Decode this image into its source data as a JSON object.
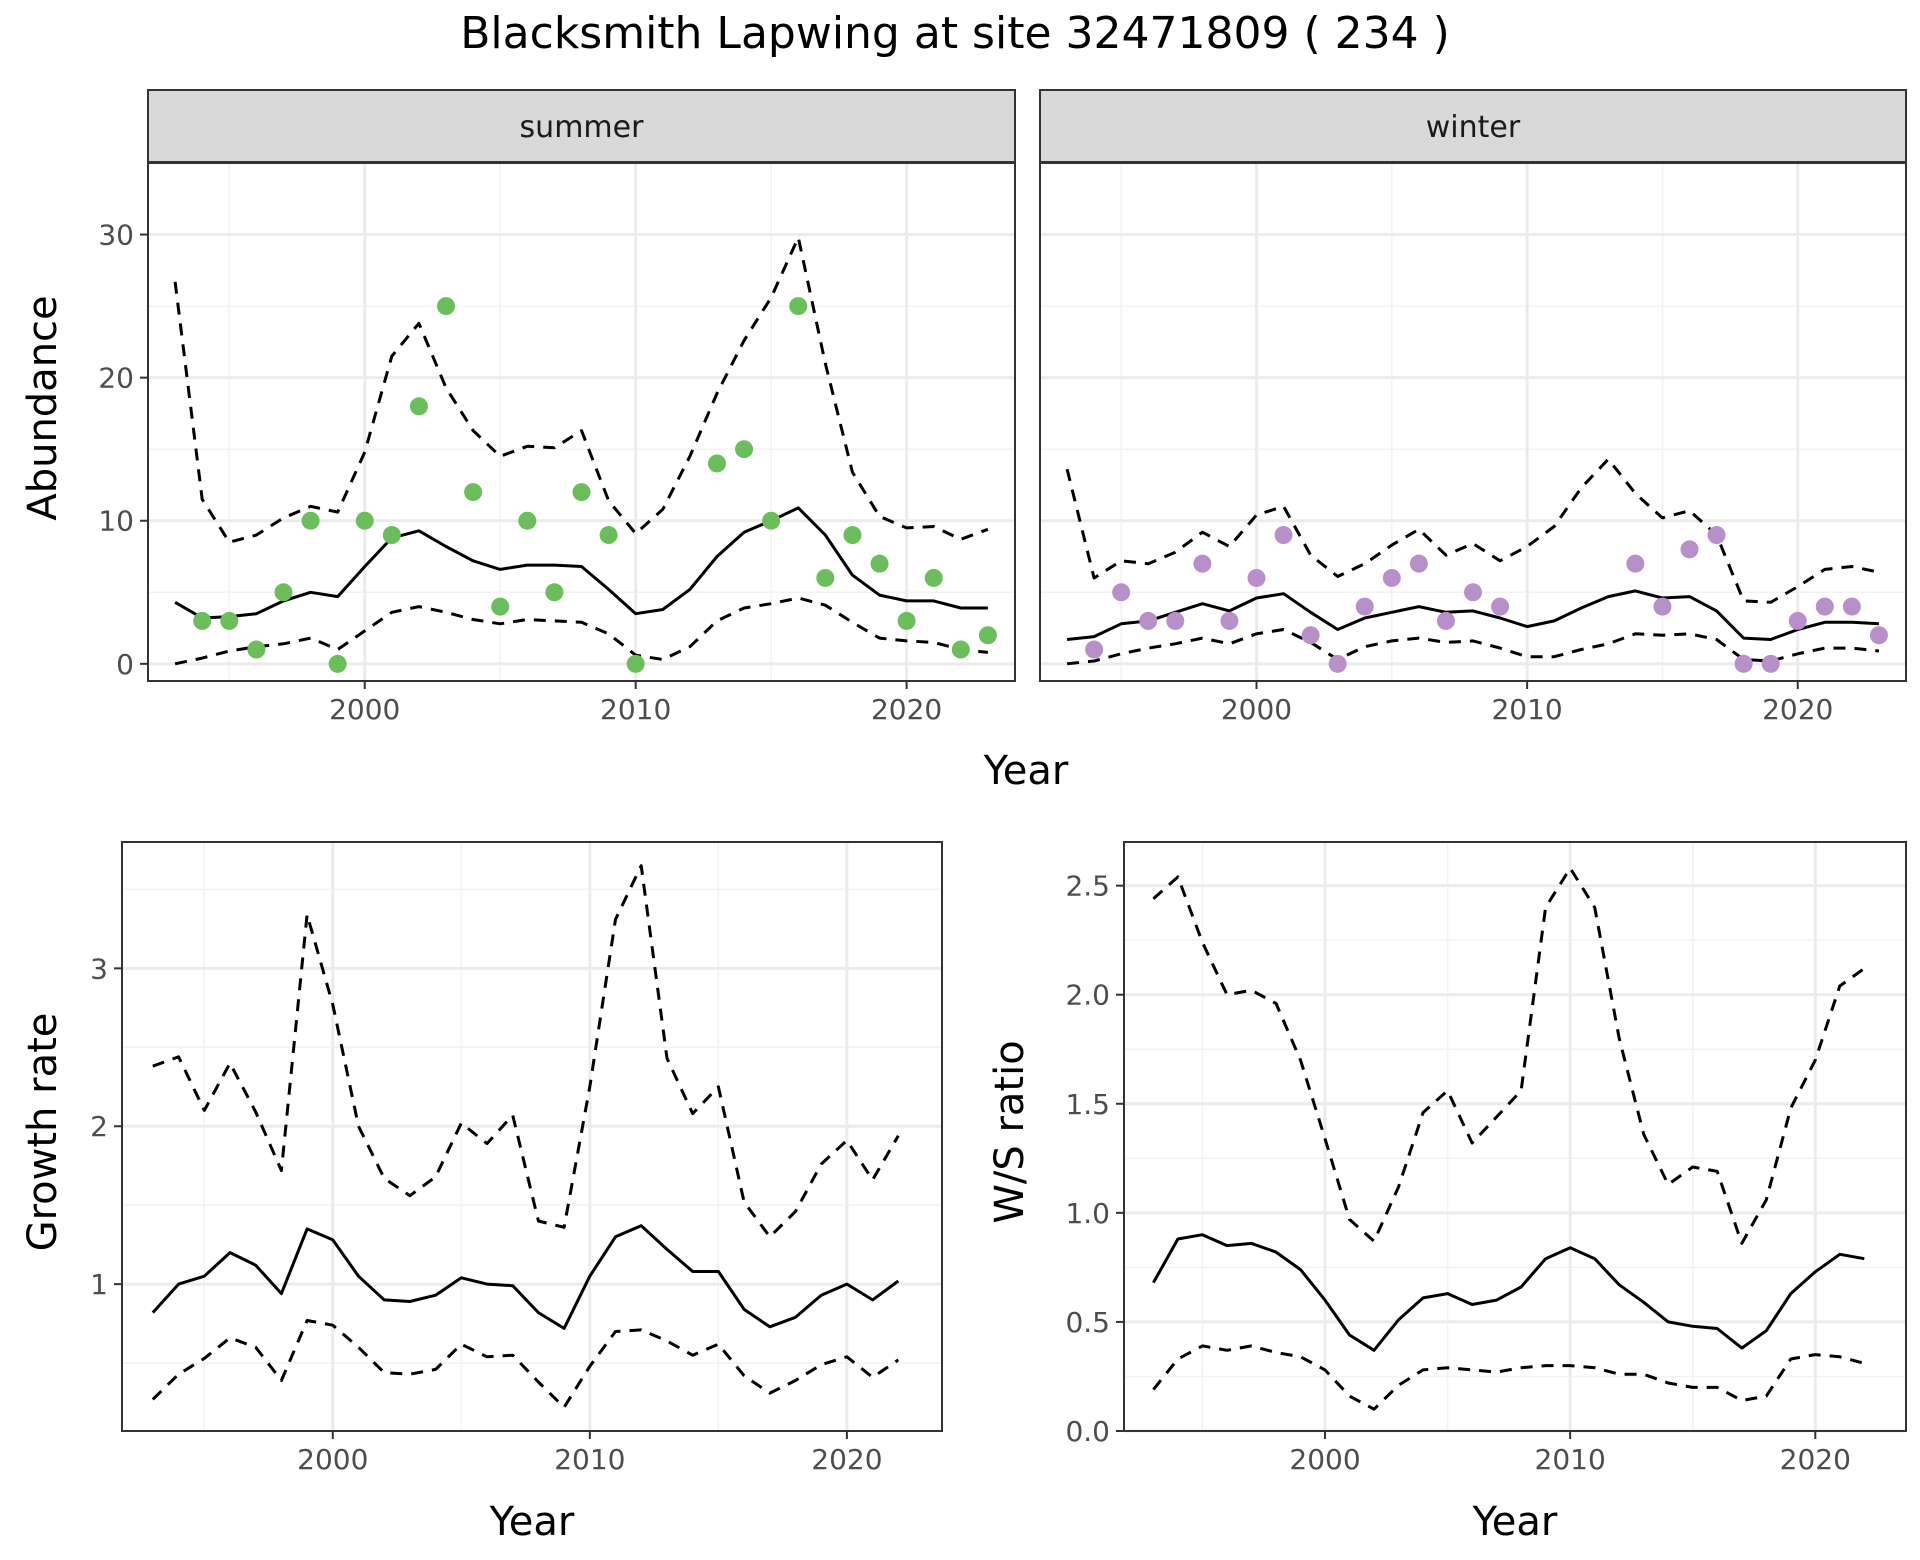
{
  "title": "Blacksmith Lapwing at site 32471809 ( 234 )",
  "colors": {
    "summer_points": "#6cbd5b",
    "winter_points": "#b98fca",
    "lines": "#000000",
    "strip_bg": "#d9d9d9",
    "grid": "#ebebeb"
  },
  "chart_data": [
    {
      "type": "line",
      "panel": "summer",
      "facet_label": "summer",
      "xlabel": "Year",
      "ylabel": "Abundance",
      "xlim": [
        1992,
        2024
      ],
      "ylim": [
        -1.2,
        35
      ],
      "x_ticks": [
        2000,
        2010,
        2020
      ],
      "y_ticks": [
        0,
        10,
        20,
        30
      ],
      "grid": true,
      "legend": "none",
      "points": {
        "x": [
          1994,
          1995,
          1996,
          1997,
          1998,
          1999,
          2000,
          2001,
          2002,
          2003,
          2004,
          2005,
          2006,
          2007,
          2008,
          2009,
          2010,
          2013,
          2014,
          2015,
          2016,
          2017,
          2018,
          2019,
          2020,
          2021,
          2022,
          2023
        ],
        "y": [
          3,
          3,
          1,
          5,
          10,
          0,
          10,
          9,
          18,
          25,
          12,
          4,
          10,
          5,
          12,
          9,
          0,
          14,
          15,
          10,
          25,
          6,
          9,
          7,
          3,
          6,
          1,
          2
        ]
      },
      "series": [
        {
          "name": "mean",
          "style": "solid",
          "x": [
            1993,
            1994,
            1995,
            1996,
            1997,
            1998,
            1999,
            2000,
            2001,
            2002,
            2003,
            2004,
            2005,
            2006,
            2007,
            2008,
            2009,
            2010,
            2011,
            2012,
            2013,
            2014,
            2015,
            2016,
            2017,
            2018,
            2019,
            2020,
            2021,
            2022,
            2023
          ],
          "y": [
            4.3,
            3.2,
            3.3,
            3.5,
            4.4,
            5.0,
            4.7,
            6.8,
            8.8,
            9.3,
            8.2,
            7.2,
            6.6,
            6.9,
            6.9,
            6.8,
            5.2,
            3.5,
            3.8,
            5.2,
            7.5,
            9.2,
            10.0,
            10.9,
            9.0,
            6.2,
            4.8,
            4.4,
            4.4,
            3.9,
            3.9
          ]
        },
        {
          "name": "upper",
          "style": "dashed",
          "x": [
            1993,
            1994,
            1995,
            1996,
            1997,
            1998,
            1999,
            2000,
            2001,
            2002,
            2003,
            2004,
            2005,
            2006,
            2007,
            2008,
            2009,
            2010,
            2011,
            2012,
            2013,
            2014,
            2015,
            2016,
            2017,
            2018,
            2019,
            2020,
            2021,
            2022,
            2023
          ],
          "y": [
            26.7,
            11.5,
            8.5,
            9.0,
            10.2,
            11.0,
            10.6,
            14.8,
            21.5,
            23.8,
            19.3,
            16.3,
            14.5,
            15.2,
            15.1,
            16.3,
            11.4,
            9.1,
            10.8,
            14.5,
            18.9,
            22.6,
            25.6,
            29.8,
            21.0,
            13.4,
            10.3,
            9.5,
            9.6,
            8.7,
            9.4
          ]
        },
        {
          "name": "lower",
          "style": "dashed",
          "x": [
            1993,
            1994,
            1995,
            1996,
            1997,
            1998,
            1999,
            2000,
            2001,
            2002,
            2003,
            2004,
            2005,
            2006,
            2007,
            2008,
            2009,
            2010,
            2011,
            2012,
            2013,
            2014,
            2015,
            2016,
            2017,
            2018,
            2019,
            2020,
            2021,
            2022,
            2023
          ],
          "y": [
            0.0,
            0.4,
            0.9,
            1.2,
            1.4,
            1.8,
            1.0,
            2.3,
            3.6,
            4.0,
            3.6,
            3.1,
            2.8,
            3.1,
            3.0,
            2.9,
            2.1,
            0.6,
            0.3,
            1.2,
            3.0,
            3.9,
            4.2,
            4.6,
            4.1,
            2.9,
            1.8,
            1.6,
            1.5,
            1.0,
            0.8
          ]
        }
      ]
    },
    {
      "type": "line",
      "panel": "winter",
      "facet_label": "winter",
      "xlabel": "Year",
      "ylabel": "Abundance",
      "xlim": [
        1992,
        2024
      ],
      "ylim": [
        -1.2,
        35
      ],
      "x_ticks": [
        2000,
        2010,
        2020
      ],
      "y_ticks": [
        0,
        10,
        20,
        30
      ],
      "grid": true,
      "legend": "none",
      "points": {
        "x": [
          1994,
          1995,
          1996,
          1997,
          1998,
          1999,
          2000,
          2001,
          2002,
          2003,
          2004,
          2005,
          2006,
          2007,
          2008,
          2009,
          2014,
          2015,
          2016,
          2017,
          2018,
          2019,
          2020,
          2021,
          2022,
          2023
        ],
        "y": [
          1,
          5,
          3,
          3,
          7,
          3,
          6,
          9,
          2,
          0,
          4,
          6,
          7,
          3,
          5,
          4,
          7,
          4,
          8,
          9,
          0,
          0,
          3,
          4,
          4,
          2
        ]
      },
      "series": [
        {
          "name": "mean",
          "style": "solid",
          "x": [
            1993,
            1994,
            1995,
            1996,
            1997,
            1998,
            1999,
            2000,
            2001,
            2002,
            2003,
            2004,
            2005,
            2006,
            2007,
            2008,
            2009,
            2010,
            2011,
            2012,
            2013,
            2014,
            2015,
            2016,
            2017,
            2018,
            2019,
            2020,
            2021,
            2022,
            2023
          ],
          "y": [
            1.7,
            1.9,
            2.8,
            3.0,
            3.6,
            4.2,
            3.7,
            4.6,
            4.9,
            3.6,
            2.4,
            3.2,
            3.6,
            4.0,
            3.6,
            3.7,
            3.2,
            2.6,
            3.0,
            3.9,
            4.7,
            5.1,
            4.6,
            4.7,
            3.7,
            1.8,
            1.7,
            2.4,
            2.9,
            2.9,
            2.8
          ]
        },
        {
          "name": "upper",
          "style": "dashed",
          "x": [
            1993,
            1994,
            1995,
            1996,
            1997,
            1998,
            1999,
            2000,
            2001,
            2002,
            2003,
            2004,
            2005,
            2006,
            2007,
            2008,
            2009,
            2010,
            2011,
            2012,
            2013,
            2014,
            2015,
            2016,
            2017,
            2018,
            2019,
            2020,
            2021,
            2022,
            2023
          ],
          "y": [
            13.6,
            6.0,
            7.2,
            7.0,
            7.8,
            9.2,
            8.2,
            10.4,
            11.0,
            7.6,
            6.1,
            7.0,
            8.3,
            9.4,
            7.6,
            8.4,
            7.2,
            8.2,
            9.6,
            12.3,
            14.3,
            11.9,
            10.2,
            10.7,
            9.0,
            4.4,
            4.3,
            5.4,
            6.6,
            6.8,
            6.4
          ]
        },
        {
          "name": "lower",
          "style": "dashed",
          "x": [
            1993,
            1994,
            1995,
            1996,
            1997,
            1998,
            1999,
            2000,
            2001,
            2002,
            2003,
            2004,
            2005,
            2006,
            2007,
            2008,
            2009,
            2010,
            2011,
            2012,
            2013,
            2014,
            2015,
            2016,
            2017,
            2018,
            2019,
            2020,
            2021,
            2022,
            2023
          ],
          "y": [
            0.0,
            0.2,
            0.7,
            1.1,
            1.4,
            1.8,
            1.4,
            2.1,
            2.4,
            1.5,
            0.3,
            1.2,
            1.6,
            1.8,
            1.5,
            1.6,
            1.1,
            0.5,
            0.5,
            1.0,
            1.4,
            2.1,
            2.0,
            2.1,
            1.7,
            0.3,
            0.2,
            0.7,
            1.1,
            1.1,
            0.9
          ]
        }
      ]
    },
    {
      "type": "line",
      "panel": "growth",
      "xlabel": "Year",
      "ylabel": "Growth rate",
      "xlim": [
        1991.8,
        2023.7
      ],
      "ylim": [
        0.07,
        3.8
      ],
      "x_ticks": [
        2000,
        2010,
        2020
      ],
      "y_ticks": [
        1,
        2,
        3
      ],
      "grid": true,
      "legend": "none",
      "series": [
        {
          "name": "mean",
          "style": "solid",
          "x": [
            1993,
            1994,
            1995,
            1996,
            1997,
            1998,
            1999,
            2000,
            2001,
            2002,
            2003,
            2004,
            2005,
            2006,
            2007,
            2008,
            2009,
            2010,
            2011,
            2012,
            2013,
            2014,
            2015,
            2016,
            2017,
            2018,
            2019,
            2020,
            2021,
            2022
          ],
          "y": [
            0.82,
            1.0,
            1.05,
            1.2,
            1.12,
            0.94,
            1.35,
            1.28,
            1.05,
            0.9,
            0.89,
            0.93,
            1.04,
            1.0,
            0.99,
            0.82,
            0.72,
            1.05,
            1.3,
            1.37,
            1.22,
            1.08,
            1.08,
            0.84,
            0.73,
            0.79,
            0.93,
            1.0,
            0.9,
            1.02
          ]
        },
        {
          "name": "upper",
          "style": "dashed",
          "x": [
            1993,
            1994,
            1995,
            1996,
            1997,
            1998,
            1999,
            2000,
            2001,
            2002,
            2003,
            2004,
            2005,
            2006,
            2007,
            2008,
            2009,
            2010,
            2011,
            2012,
            2013,
            2014,
            2015,
            2016,
            2017,
            2018,
            2019,
            2020,
            2021,
            2022
          ],
          "y": [
            2.38,
            2.44,
            2.1,
            2.4,
            2.09,
            1.72,
            3.34,
            2.77,
            2.0,
            1.67,
            1.56,
            1.68,
            2.02,
            1.89,
            2.07,
            1.4,
            1.36,
            2.25,
            3.31,
            3.65,
            2.43,
            2.08,
            2.25,
            1.52,
            1.3,
            1.46,
            1.76,
            1.91,
            1.66,
            1.94
          ]
        },
        {
          "name": "lower",
          "style": "dashed",
          "x": [
            1993,
            1994,
            1995,
            1996,
            1997,
            1998,
            1999,
            2000,
            2001,
            2002,
            2003,
            2004,
            2005,
            2006,
            2007,
            2008,
            2009,
            2010,
            2011,
            2012,
            2013,
            2014,
            2015,
            2016,
            2017,
            2018,
            2019,
            2020,
            2021,
            2022
          ],
          "y": [
            0.27,
            0.43,
            0.53,
            0.66,
            0.6,
            0.39,
            0.77,
            0.74,
            0.6,
            0.44,
            0.43,
            0.46,
            0.62,
            0.54,
            0.55,
            0.38,
            0.22,
            0.48,
            0.7,
            0.71,
            0.64,
            0.55,
            0.62,
            0.42,
            0.31,
            0.39,
            0.49,
            0.54,
            0.41,
            0.52
          ]
        }
      ]
    },
    {
      "type": "line",
      "panel": "ratio",
      "xlabel": "Year",
      "ylabel": "W/S ratio",
      "xlim": [
        1991.8,
        2023.7
      ],
      "ylim": [
        0.0,
        2.7
      ],
      "x_ticks": [
        2000,
        2010,
        2020
      ],
      "y_ticks": [
        0.0,
        0.5,
        1.0,
        1.5,
        2.0,
        2.5
      ],
      "y_tick_labels": [
        "0.0",
        "0.5",
        "1.0",
        "1.5",
        "2.0",
        "2.5"
      ],
      "grid": true,
      "legend": "none",
      "series": [
        {
          "name": "mean",
          "style": "solid",
          "x": [
            1993,
            1994,
            1995,
            1996,
            1997,
            1998,
            1999,
            2000,
            2001,
            2002,
            2003,
            2004,
            2005,
            2006,
            2007,
            2008,
            2009,
            2010,
            2011,
            2012,
            2013,
            2014,
            2015,
            2016,
            2017,
            2018,
            2019,
            2020,
            2021,
            2022
          ],
          "y": [
            0.68,
            0.88,
            0.9,
            0.85,
            0.86,
            0.82,
            0.74,
            0.6,
            0.44,
            0.37,
            0.51,
            0.61,
            0.63,
            0.58,
            0.6,
            0.66,
            0.79,
            0.84,
            0.79,
            0.67,
            0.59,
            0.5,
            0.48,
            0.47,
            0.38,
            0.46,
            0.63,
            0.73,
            0.81,
            0.79
          ]
        },
        {
          "name": "upper",
          "style": "dashed",
          "x": [
            1993,
            1994,
            1995,
            1996,
            1997,
            1998,
            1999,
            2000,
            2001,
            2002,
            2003,
            2004,
            2005,
            2006,
            2007,
            2008,
            2009,
            2010,
            2011,
            2012,
            2013,
            2014,
            2015,
            2016,
            2017,
            2018,
            2019,
            2020,
            2021,
            2022
          ],
          "y": [
            2.44,
            2.54,
            2.24,
            2.0,
            2.02,
            1.96,
            1.7,
            1.34,
            0.97,
            0.87,
            1.12,
            1.46,
            1.56,
            1.32,
            1.44,
            1.56,
            2.4,
            2.58,
            2.4,
            1.8,
            1.36,
            1.13,
            1.21,
            1.19,
            0.86,
            1.06,
            1.48,
            1.7,
            2.04,
            2.12
          ]
        },
        {
          "name": "lower",
          "style": "dashed",
          "x": [
            1993,
            1994,
            1995,
            1996,
            1997,
            1998,
            1999,
            2000,
            2001,
            2002,
            2003,
            2004,
            2005,
            2006,
            2007,
            2008,
            2009,
            2010,
            2011,
            2012,
            2013,
            2014,
            2015,
            2016,
            2017,
            2018,
            2019,
            2020,
            2021,
            2022
          ],
          "y": [
            0.19,
            0.33,
            0.39,
            0.37,
            0.39,
            0.36,
            0.34,
            0.28,
            0.16,
            0.1,
            0.21,
            0.28,
            0.29,
            0.28,
            0.27,
            0.29,
            0.3,
            0.3,
            0.29,
            0.26,
            0.26,
            0.22,
            0.2,
            0.2,
            0.14,
            0.16,
            0.33,
            0.35,
            0.34,
            0.31
          ]
        }
      ]
    }
  ]
}
